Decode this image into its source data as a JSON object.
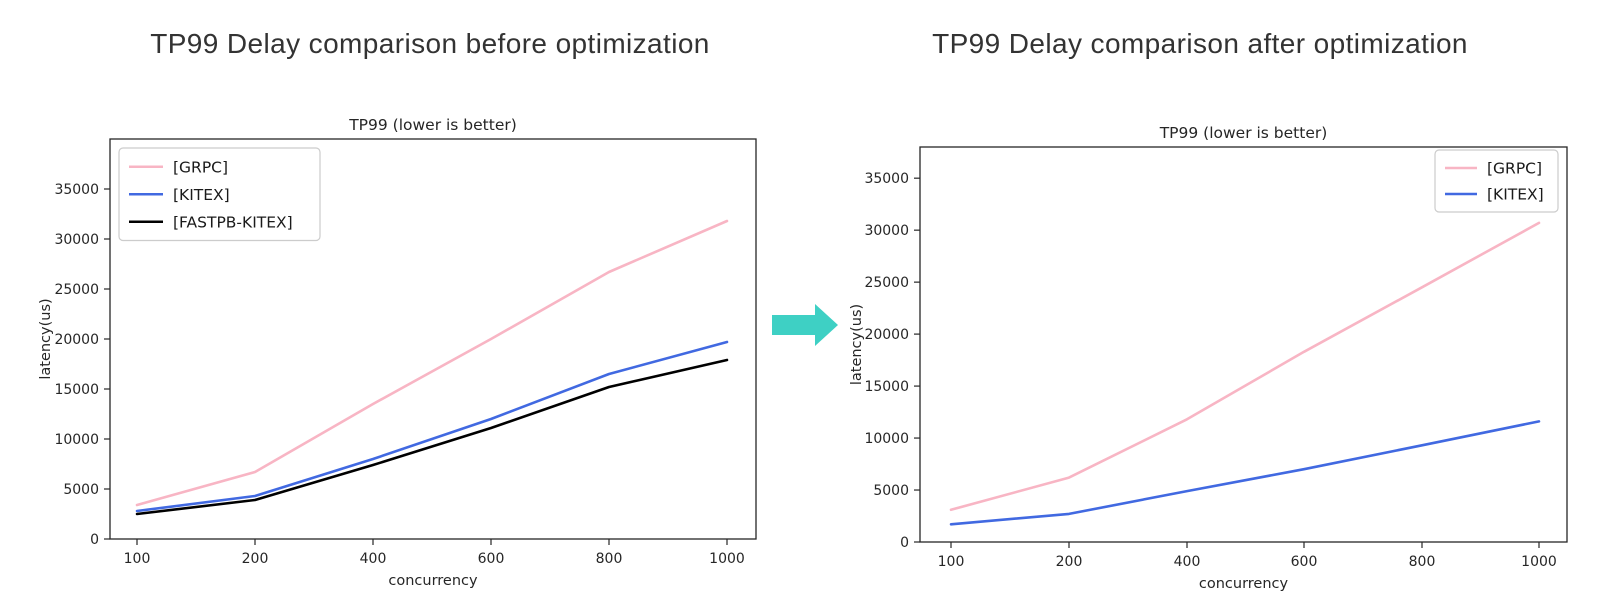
{
  "page": {
    "background": "#ffffff"
  },
  "figures": [
    {
      "heading": "TP99 Delay comparison before optimization"
    },
    {
      "heading": "TP99 Delay comparison after optimization"
    }
  ],
  "arrow": {
    "meaning": "before-to-after",
    "color": "#3ED0C4"
  },
  "chart_data": [
    {
      "type": "line",
      "title": "TP99 (lower is better)",
      "xlabel": "concurrency",
      "ylabel": "latency(us)",
      "categories": [
        "100",
        "200",
        "400",
        "600",
        "800",
        "1000"
      ],
      "series": [
        {
          "name": "[GRPC]",
          "color": "#F8B5C4",
          "values": [
            3400,
            6700,
            13500,
            20000,
            26700,
            31800
          ]
        },
        {
          "name": "[KITEX]",
          "color": "#4169E1",
          "values": [
            2800,
            4300,
            8000,
            12000,
            16500,
            19700
          ]
        },
        {
          "name": "[FASTPB-KITEX]",
          "color": "#000000",
          "values": [
            2500,
            3900,
            7400,
            11100,
            15200,
            17900
          ]
        }
      ],
      "yticks": [
        0,
        5000,
        10000,
        15000,
        20000,
        25000,
        30000,
        35000
      ],
      "ylim": [
        0,
        40000
      ],
      "grid": false,
      "legend_position": "upper-left"
    },
    {
      "type": "line",
      "title": "TP99 (lower is better)",
      "xlabel": "concurrency",
      "ylabel": "latency(us)",
      "categories": [
        "100",
        "200",
        "400",
        "600",
        "800",
        "1000"
      ],
      "series": [
        {
          "name": "[GRPC]",
          "color": "#F8B5C4",
          "values": [
            3100,
            6200,
            11800,
            18300,
            24500,
            30700
          ]
        },
        {
          "name": "[KITEX]",
          "color": "#4169E1",
          "values": [
            1700,
            2700,
            4900,
            7000,
            9300,
            11600
          ]
        }
      ],
      "yticks": [
        0,
        5000,
        10000,
        15000,
        20000,
        25000,
        30000,
        35000
      ],
      "ylim": [
        0,
        38000
      ],
      "grid": false,
      "legend_position": "upper-right"
    }
  ]
}
